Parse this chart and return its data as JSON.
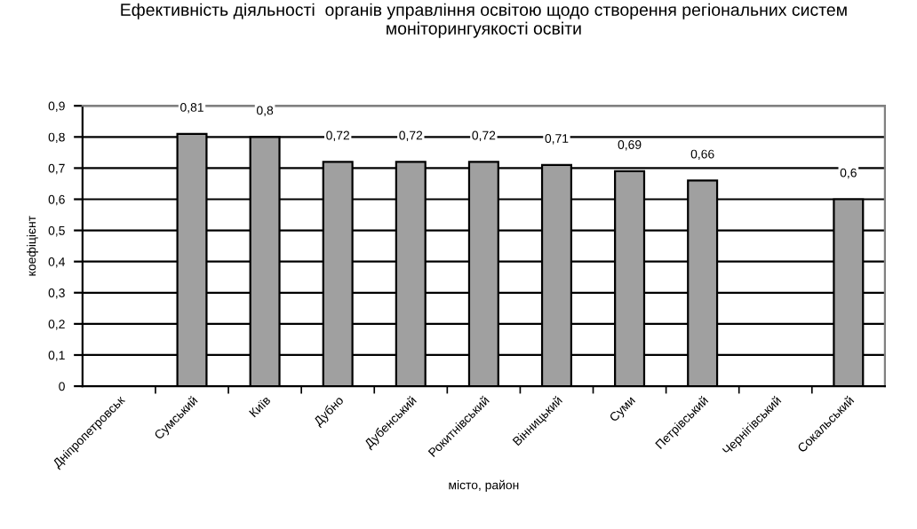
{
  "chart_data": {
    "type": "bar",
    "title": "Ефективність діяльності  органів управління освітою щодо створення регіональних систем моніторингуякості освіти",
    "xlabel": "місто, район",
    "ylabel": "коефіцієнт",
    "categories": [
      "Дніпропетровськ",
      "Сумський",
      "Київ",
      "Дубно",
      "Дубенський",
      "Рокитнівський",
      "Вінницький",
      "Суми",
      "Петрівський",
      "Чернігівський",
      "Сокальський"
    ],
    "values": [
      null,
      0.81,
      0.8,
      0.72,
      0.72,
      0.72,
      0.71,
      0.69,
      0.66,
      null,
      0.6
    ],
    "value_labels": [
      null,
      "0,81",
      "0,8",
      "0,72",
      "0,72",
      "0,72",
      "0,71",
      "0,69",
      "0,66",
      null,
      "0,6"
    ],
    "color": "#a0a0a0",
    "ylim": [
      0,
      0.9
    ],
    "yticks": [
      0,
      {
        "value": 0.1,
        "label": "0,1"
      },
      {
        "value": 0.2,
        "label": "0,2"
      },
      {
        "value": 0.3,
        "label": "0,3"
      },
      {
        "value": 0.4,
        "label": "0,4"
      },
      {
        "value": 0.5,
        "label": "0,5"
      },
      {
        "value": 0.6,
        "label": "0,6"
      },
      {
        "value": 0.7,
        "label": "0,7"
      },
      {
        "value": 0.8,
        "label": "0,8"
      },
      {
        "value": 0.9,
        "label": "0,9"
      }
    ],
    "grid": "y"
  }
}
